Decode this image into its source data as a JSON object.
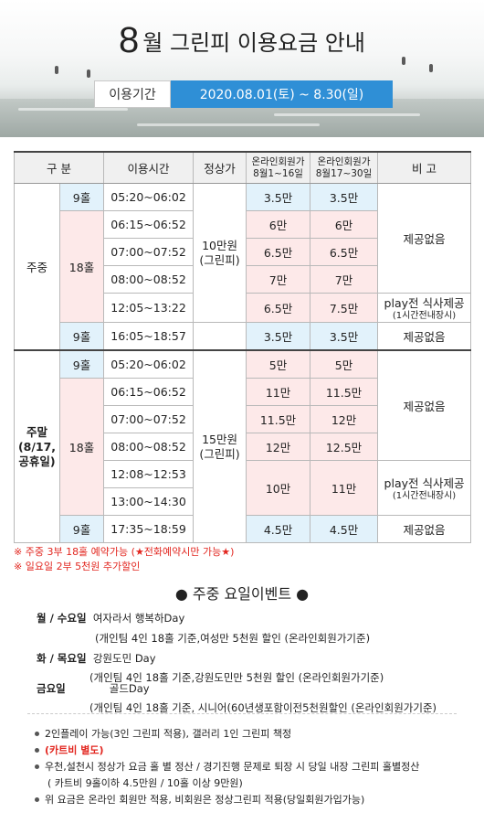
{
  "header": {
    "title_number": "8",
    "title_text": "월 그린피 이용요금 안내",
    "period_label": "이용기간",
    "period_value": "2020.08.01(토) ~ 8.30(일)"
  },
  "table": {
    "headers": {
      "division": "구   분",
      "time": "이용시간",
      "regular": "정상가",
      "online1_line1": "온라인회원가",
      "online1_line2": "8월1~16일",
      "online2_line1": "온라인회원가",
      "online2_line2": "8월17~30일",
      "remark": "비   고"
    },
    "weekday": {
      "label": "주중",
      "regular_line1": "10만원",
      "regular_line2": "(그린피)",
      "rows": [
        {
          "holes": "9홀",
          "time": "05:20~06:02",
          "p1": "3.5만",
          "p2": "3.5만"
        },
        {
          "holes": "18홀",
          "time": "06:15~06:52",
          "p1": "6만",
          "p2": "6만"
        },
        {
          "time": "07:00~07:52",
          "p1": "6.5만",
          "p2": "6.5만"
        },
        {
          "time": "08:00~08:52",
          "p1": "7만",
          "p2": "7만"
        },
        {
          "time": "12:05~13:22",
          "p1": "6.5만",
          "p2": "7.5만"
        },
        {
          "holes": "9홀",
          "time": "16:05~18:57",
          "p1": "3.5만",
          "p2": "3.5만"
        }
      ],
      "remark_none_1": "제공없음",
      "remark_meal_1": "play전 식사제공",
      "remark_meal_2": "(1시간전내장시)",
      "remark_none_2": "제공없음"
    },
    "weekend": {
      "label_1": "주말",
      "label_2": "(8/17,",
      "label_3": "공휴일)",
      "regular_line1": "15만원",
      "regular_line2": "(그린피)",
      "rows": [
        {
          "holes": "9홀",
          "time": "05:20~06:02",
          "p1": "5만",
          "p2": "5만"
        },
        {
          "holes": "18홀",
          "time": "06:15~06:52",
          "p1": "11만",
          "p2": "11.5만"
        },
        {
          "time": "07:00~07:52",
          "p1": "11.5만",
          "p2": "12만"
        },
        {
          "time": "08:00~08:52",
          "p1": "12만",
          "p2": "12.5만"
        },
        {
          "time": "12:08~12:53",
          "p1": "10만",
          "p2": "11만"
        },
        {
          "time": "13:00~14:30"
        },
        {
          "holes": "9홀",
          "time": "17:35~18:59",
          "p1": "4.5만",
          "p2": "4.5만"
        }
      ],
      "remark_none_1": "제공없음",
      "remark_meal_1": "play전 식사제공",
      "remark_meal_2": "(1시간전내장시)",
      "remark_none_2": "제공없음"
    }
  },
  "notes": [
    "※ 주중 3부 18홀 예약가능 (★전화예약시만 가능★)",
    "※ 일요일 2부 5천원 추가할인"
  ],
  "event": {
    "title": "● 주중 요일이벤트 ●",
    "items": [
      {
        "day": "월 / 수요일",
        "name": "여자라서 행복하Day",
        "detail": "(개인팀 4인 18홀 기준,여성만 5천원 할인 (온라인회원가기준)"
      },
      {
        "day": "화 / 목요일",
        "name": "강원도민 Day",
        "detail": "(개인팀 4인 18홀 기준,강원도민만 5천원 할인 (온라인회원가기준)"
      },
      {
        "day": "금요일",
        "name": "골드Day",
        "detail": "(개인팀 4인 18홀 기준, 시니어(60년생포함이전5천원할인 (온라인회원가기준)"
      }
    ]
  },
  "bullets": {
    "b1": "2인플레이 가능(3인 그린피 적용), 갤러리 1인 그린피 책정",
    "b2": "(카트비 별도)",
    "b3": "우천,설천시 정상가 요금 홀 별 정산 / 경기진행 문제로 퇴장 시 당일 내장 그린피 홀별정산",
    "b3_cont": "( 카트비 9홀이하 4.5만원 / 10홀 이상 9만원)",
    "b4": "위 요금은 온라인 회원만 적용, 비회원은 정상그린피 적용(당일회원가입가능)"
  },
  "colors": {
    "accent_blue": "#2f8fd6",
    "cell_blue": "#e2f2fb",
    "cell_pink": "#fde9e9",
    "red": "#e2261f"
  }
}
